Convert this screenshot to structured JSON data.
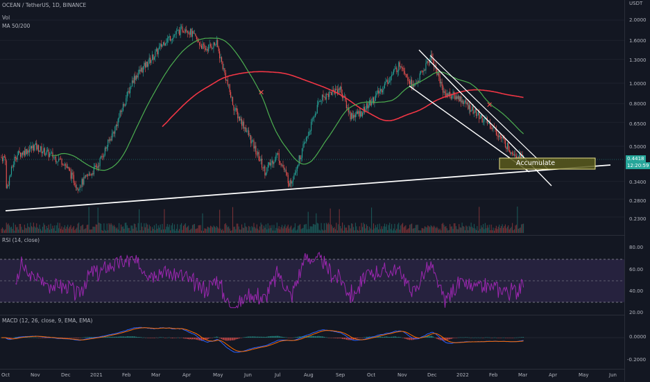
{
  "header": {
    "symbol_line": "OCEAN / TetherUS, 1D, BINANCE",
    "vol_label": "Vol",
    "ma_label": "MA 50/200"
  },
  "price_axis": {
    "currency": "USDT",
    "ticks": [
      "2.0000",
      "1.6000",
      "1.3000",
      "1.0000",
      "0.8000",
      "0.6500",
      "0.5000",
      "0.3400",
      "0.2800",
      "0.2300"
    ]
  },
  "last_price": {
    "value": "0.4418",
    "countdown": "12:20:59"
  },
  "annotation": {
    "text": "Accumulate"
  },
  "rsi": {
    "title": "RSI (14, close)",
    "ticks": [
      "80.00",
      "60.00",
      "40.00",
      "20.00"
    ]
  },
  "macd": {
    "title": "MACD (12, 26, close, 9, EMA, EMA)",
    "ticks": [
      "0.0000",
      "-0.2000"
    ]
  },
  "time_axis": {
    "labels": [
      "Oct",
      "Nov",
      "Dec",
      "2021",
      "Feb",
      "Mar",
      "Apr",
      "May",
      "Jun",
      "Jul",
      "Aug",
      "Sep",
      "Oct",
      "Nov",
      "Dec",
      "2022",
      "Feb",
      "Mar",
      "Apr",
      "May",
      "Jun"
    ]
  },
  "colors": {
    "up": "#26a69a",
    "down": "#ef5350",
    "ma50": "#4caf50",
    "ma200": "#f23645",
    "rsi": "#9c27b0",
    "macd": "#2962ff",
    "signal": "#ff6d00",
    "trend": "#ffffff"
  },
  "chart_data": {
    "type": "candlestick",
    "symbol": "OCEAN / TetherUS",
    "timeframe": "1D",
    "exchange": "BINANCE",
    "price_scale": "log",
    "approx_close_path": [
      {
        "x": "Oct",
        "y": 0.3
      },
      {
        "x": "Oct",
        "y": 0.45
      },
      {
        "x": "Nov",
        "y": 0.5
      },
      {
        "x": "Dec",
        "y": 0.42
      },
      {
        "x": "Dec",
        "y": 0.32
      },
      {
        "x": "2021",
        "y": 0.4
      },
      {
        "x": "2021",
        "y": 0.6
      },
      {
        "x": "Feb",
        "y": 1.05
      },
      {
        "x": "Mar",
        "y": 1.35
      },
      {
        "x": "Mar",
        "y": 1.6
      },
      {
        "x": "Apr",
        "y": 1.85
      },
      {
        "x": "Apr",
        "y": 1.45
      },
      {
        "x": "May",
        "y": 1.55
      },
      {
        "x": "May",
        "y": 0.75
      },
      {
        "x": "Jun",
        "y": 0.6
      },
      {
        "x": "Jun",
        "y": 0.38
      },
      {
        "x": "Jul",
        "y": 0.46
      },
      {
        "x": "Jul",
        "y": 0.33
      },
      {
        "x": "Aug",
        "y": 0.5
      },
      {
        "x": "Aug",
        "y": 0.85
      },
      {
        "x": "Sep",
        "y": 0.95
      },
      {
        "x": "Sep",
        "y": 0.7
      },
      {
        "x": "Oct",
        "y": 0.72
      },
      {
        "x": "Oct",
        "y": 0.85
      },
      {
        "x": "Nov",
        "y": 1.25
      },
      {
        "x": "Nov",
        "y": 0.95
      },
      {
        "x": "Dec",
        "y": 1.35
      },
      {
        "x": "Dec",
        "y": 0.9
      },
      {
        "x": "2022",
        "y": 0.85
      },
      {
        "x": "2022",
        "y": 0.7
      },
      {
        "x": "Feb",
        "y": 0.62
      },
      {
        "x": "Feb",
        "y": 0.48
      },
      {
        "x": "Mar",
        "y": 0.4418
      }
    ]
  }
}
